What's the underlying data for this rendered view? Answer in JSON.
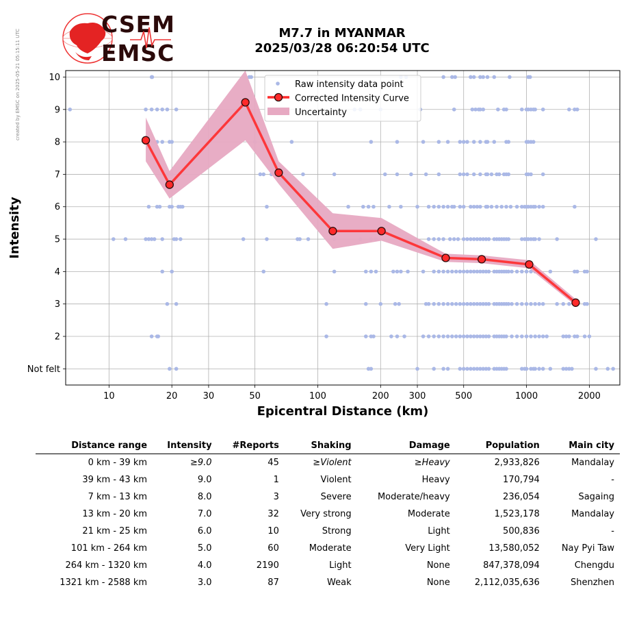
{
  "created": "created by EMSC on 2025-05-21 05:15:11 UTC",
  "logo": {
    "line1": "CSEM",
    "line2": "EMSC"
  },
  "title": {
    "line1": "M7.7 in MYANMAR",
    "line2": "2025/03/28 06:20:54 UTC"
  },
  "colors": {
    "raw": "#aab8e6",
    "curve": "#ff2a2a",
    "band": "#e7a9c2",
    "marker_edge": "#2a0a0a"
  },
  "chart_data": {
    "type": "scatter",
    "xlabel": "Epicentral Distance (km)",
    "ylabel": "Intensity",
    "xscale": "log",
    "xlim": [
      6.2,
      2800
    ],
    "ylim": [
      0.5,
      10.2
    ],
    "xticks": [
      10,
      20,
      30,
      50,
      100,
      200,
      300,
      500,
      1000,
      2000
    ],
    "yticks": [
      {
        "value": 1,
        "label": "Not felt"
      },
      {
        "value": 2,
        "label": "2"
      },
      {
        "value": 3,
        "label": "3"
      },
      {
        "value": 4,
        "label": "4"
      },
      {
        "value": 5,
        "label": "5"
      },
      {
        "value": 6,
        "label": "6"
      },
      {
        "value": 7,
        "label": "7"
      },
      {
        "value": 8,
        "label": "8"
      },
      {
        "value": 9,
        "label": "9"
      },
      {
        "value": 10,
        "label": "10"
      }
    ],
    "grid": true,
    "legend": {
      "placement": "top-center",
      "entries": [
        "Raw intensity data point",
        "Corrected Intensity Curve",
        "Uncertainty"
      ]
    },
    "curve": {
      "name": "Corrected Intensity Curve",
      "x": [
        15,
        19.5,
        45,
        65,
        118,
        202,
        410,
        610,
        1030,
        1720
      ],
      "y": [
        8.05,
        6.68,
        9.22,
        7.05,
        5.25,
        5.25,
        4.42,
        4.38,
        4.22,
        3.04
      ]
    },
    "uncertainty": {
      "name": "Uncertainty",
      "x": [
        15,
        19.5,
        45,
        65,
        118,
        202,
        410,
        610,
        1030,
        1720
      ],
      "upper": [
        8.75,
        7.1,
        10.2,
        7.4,
        5.8,
        5.65,
        4.55,
        4.5,
        4.35,
        3.15
      ],
      "lower": [
        7.4,
        6.25,
        8.05,
        6.7,
        4.7,
        4.95,
        4.3,
        4.26,
        4.1,
        2.95
      ]
    },
    "raw": [
      {
        "y": 10,
        "x": [
          16,
          16.1,
          47,
          48,
          250,
          265,
          400,
          440,
          455,
          540,
          560,
          600,
          620,
          650,
          700,
          830,
          1020,
          1040
        ]
      },
      {
        "y": 9,
        "x": [
          6.5,
          15,
          16,
          17,
          18,
          19,
          21,
          150,
          160,
          200,
          310,
          450,
          550,
          570,
          590,
          600,
          620,
          730,
          780,
          800,
          950,
          1000,
          1020,
          1050,
          1080,
          1100,
          1200,
          1600,
          1700,
          1750
        ]
      },
      {
        "y": 8,
        "x": [
          15.5,
          17,
          18,
          19.5,
          20,
          50,
          75,
          180,
          240,
          320,
          380,
          420,
          480,
          500,
          520,
          560,
          600,
          640,
          650,
          700,
          800,
          820,
          1000,
          1020,
          1050,
          1080
        ]
      },
      {
        "y": 7,
        "x": [
          19,
          20,
          53,
          55,
          60,
          85,
          120,
          210,
          240,
          280,
          330,
          380,
          480,
          500,
          520,
          560,
          600,
          640,
          650,
          680,
          720,
          740,
          780,
          800,
          820,
          1000,
          1020,
          1050,
          1200
        ]
      },
      {
        "y": 6,
        "x": [
          15.5,
          17,
          17.5,
          19.5,
          20,
          21.5,
          22,
          22.5,
          57,
          140,
          165,
          175,
          185,
          220,
          250,
          300,
          340,
          360,
          380,
          400,
          420,
          440,
          450,
          480,
          500,
          540,
          560,
          580,
          600,
          640,
          650,
          680,
          720,
          760,
          800,
          840,
          900,
          950,
          980,
          1000,
          1020,
          1050,
          1080,
          1100,
          1150,
          1200,
          1700
        ]
      },
      {
        "y": 5,
        "x": [
          10.5,
          12,
          15,
          15.5,
          16,
          16.5,
          18,
          20.5,
          21,
          22,
          44,
          57,
          80,
          82,
          90,
          120,
          160,
          180,
          190,
          340,
          360,
          380,
          400,
          430,
          450,
          470,
          500,
          520,
          540,
          560,
          580,
          600,
          620,
          640,
          660,
          700,
          720,
          740,
          760,
          780,
          800,
          820,
          950,
          980,
          1000,
          1020,
          1050,
          1080,
          1100,
          1150,
          1400,
          2150
        ]
      },
      {
        "y": 4,
        "x": [
          18,
          20,
          55,
          120,
          170,
          180,
          190,
          230,
          240,
          250,
          270,
          320,
          360,
          380,
          400,
          420,
          440,
          460,
          480,
          500,
          520,
          540,
          560,
          580,
          600,
          620,
          640,
          660,
          700,
          720,
          740,
          760,
          780,
          800,
          820,
          850,
          900,
          950,
          1000,
          1050,
          1100,
          1300,
          1700,
          1750,
          1900,
          1950
        ]
      },
      {
        "y": 3,
        "x": [
          19,
          21,
          110,
          170,
          200,
          235,
          245,
          330,
          340,
          360,
          380,
          400,
          420,
          440,
          460,
          480,
          500,
          520,
          540,
          560,
          580,
          600,
          620,
          640,
          660,
          700,
          720,
          740,
          760,
          780,
          800,
          820,
          850,
          900,
          950,
          1000,
          1050,
          1100,
          1150,
          1200,
          1400,
          1500,
          1600,
          1900,
          1950
        ]
      },
      {
        "y": 2,
        "x": [
          16,
          17,
          17.2,
          110,
          170,
          180,
          185,
          225,
          240,
          260,
          320,
          340,
          360,
          380,
          400,
          420,
          440,
          460,
          480,
          500,
          520,
          540,
          560,
          580,
          600,
          620,
          640,
          660,
          700,
          720,
          740,
          760,
          780,
          800,
          850,
          900,
          950,
          1000,
          1050,
          1100,
          1150,
          1200,
          1250,
          1500,
          1550,
          1600,
          1700,
          1750,
          1900,
          2000
        ]
      },
      {
        "y": 1,
        "x": [
          19.5,
          21,
          175,
          180,
          300,
          360,
          400,
          420,
          480,
          500,
          520,
          540,
          560,
          580,
          600,
          620,
          640,
          660,
          700,
          720,
          740,
          760,
          780,
          800,
          950,
          980,
          1000,
          1050,
          1080,
          1100,
          1150,
          1200,
          1300,
          1500,
          1550,
          1600,
          1650,
          2150,
          2450,
          2600
        ]
      }
    ]
  },
  "table": {
    "headers": [
      "Distance range",
      "Intensity",
      "#Reports",
      "Shaking",
      "Damage",
      "Population",
      "Main city"
    ],
    "rows": [
      [
        "0 km -   39 km",
        "≥9.0",
        "45",
        "≥Violent",
        "≥Heavy",
        "2,933,826",
        "Mandalay"
      ],
      [
        "39 km -   43 km",
        "9.0",
        "1",
        "Violent",
        "Heavy",
        "170,794",
        "-"
      ],
      [
        "7 km -   13 km",
        "8.0",
        "3",
        "Severe",
        "Moderate/heavy",
        "236,054",
        "Sagaing"
      ],
      [
        "13 km -   20 km",
        "7.0",
        "32",
        "Very strong",
        "Moderate",
        "1,523,178",
        "Mandalay"
      ],
      [
        "21 km -   25 km",
        "6.0",
        "10",
        "Strong",
        "Light",
        "500,836",
        "-"
      ],
      [
        "101 km -  264 km",
        "5.0",
        "60",
        "Moderate",
        "Very Light",
        "13,580,052",
        "Nay Pyi Taw"
      ],
      [
        "264 km - 1320 km",
        "4.0",
        "2190",
        "Light",
        "None",
        "847,378,094",
        "Chengdu"
      ],
      [
        "1321 km - 2588 km",
        "3.0",
        "87",
        "Weak",
        "None",
        "2,112,035,636",
        "Shenzhen"
      ]
    ]
  }
}
